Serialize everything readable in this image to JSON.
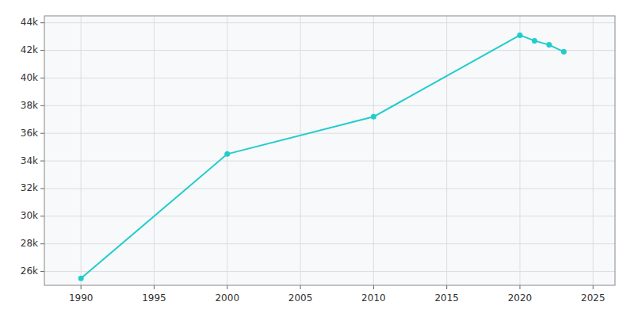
{
  "chart_data": {
    "type": "line",
    "x": [
      1990,
      2000,
      2010,
      2020,
      2021,
      2022,
      2023
    ],
    "values": [
      25500,
      34500,
      37200,
      43100,
      42700,
      42400,
      41900
    ],
    "color": "#22CCCC",
    "marker": "circle",
    "xlim": [
      1987.5,
      2026.5
    ],
    "xticks": [
      1990,
      1995,
      2000,
      2005,
      2010,
      2015,
      2020,
      2025
    ],
    "ylim": [
      25000,
      44500
    ],
    "yticks": [
      {
        "value": 26000,
        "label": "26k"
      },
      {
        "value": 28000,
        "label": "28k"
      },
      {
        "value": 30000,
        "label": "30k"
      },
      {
        "value": 32000,
        "label": "32k"
      },
      {
        "value": 34000,
        "label": "34k"
      },
      {
        "value": 36000,
        "label": "36k"
      },
      {
        "value": 38000,
        "label": "38k"
      },
      {
        "value": 40000,
        "label": "40k"
      },
      {
        "value": 42000,
        "label": "42k"
      },
      {
        "value": 44000,
        "label": "44k"
      }
    ],
    "grid": true
  }
}
